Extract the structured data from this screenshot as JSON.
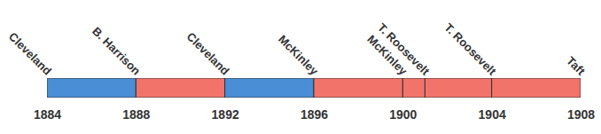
{
  "chart_data": {
    "type": "timeline",
    "labels": [
      {
        "text": "Cleveland",
        "x": 1884
      },
      {
        "text": "B. Harrison",
        "x": 1888
      },
      {
        "text": "Cleveland",
        "x": 1892
      },
      {
        "text": "McKinley",
        "x": 1896
      },
      {
        "text": "McKinley",
        "x": 1900
      },
      {
        "text": "T. Roosevelt",
        "x": 1901
      },
      {
        "text": "T. Roosevelt",
        "x": 1904
      },
      {
        "text": "Taft",
        "x": 1908
      }
    ],
    "segments": [
      {
        "start": 1884,
        "end": 1888,
        "color": "#4a8ed6"
      },
      {
        "start": 1888,
        "end": 1892,
        "color": "#f2736a"
      },
      {
        "start": 1892,
        "end": 1896,
        "color": "#4a8ed6"
      },
      {
        "start": 1896,
        "end": 1900,
        "color": "#f2736a"
      },
      {
        "start": 1900,
        "end": 1901,
        "color": "#f2736a"
      },
      {
        "start": 1901,
        "end": 1904,
        "color": "#f2736a"
      },
      {
        "start": 1904,
        "end": 1908,
        "color": "#f2736a"
      }
    ],
    "xlim": [
      1884,
      1908
    ],
    "xticks": [
      1884,
      1888,
      1892,
      1896,
      1900,
      1904,
      1908
    ]
  }
}
